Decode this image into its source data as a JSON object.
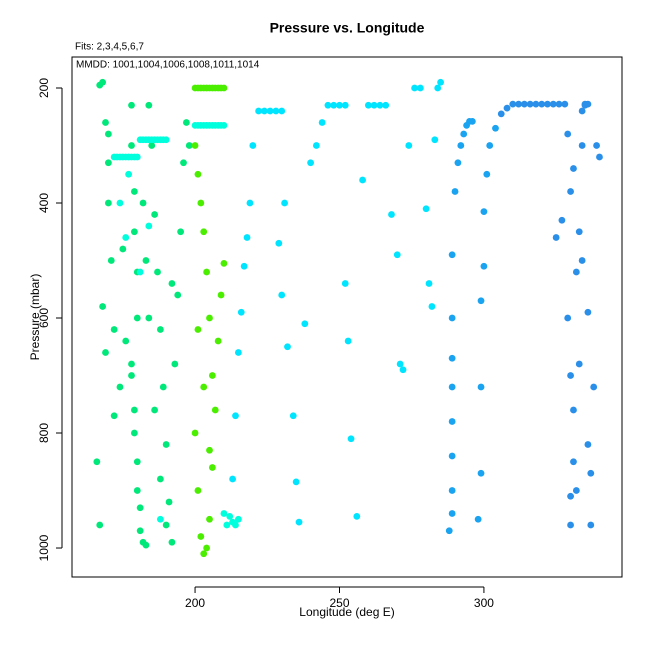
{
  "chart_data": {
    "type": "scatter",
    "title": "Pressure vs. Longitude",
    "subtitle": "Fits: 2,3,4,5,6,7",
    "annotation": "MMDD: 1001,1004,1006,1008,1011,1014",
    "x_label": "Longitude (deg E)",
    "y_label": "Pressure (mbar)",
    "xlim": [
      157.4,
      347.8
    ],
    "xticks": [
      200,
      250,
      300
    ],
    "ylim": [
      1050.4,
      146.1
    ],
    "yticks": [
      200,
      400,
      600,
      800,
      1000
    ],
    "grid": false,
    "series": [
      {
        "color": "#00e87a",
        "x": [
          167,
          168,
          169,
          170,
          170,
          171,
          168,
          169,
          172,
          166,
          167,
          178,
          178,
          179,
          179,
          180,
          180,
          178,
          179,
          180,
          181,
          182,
          183,
          184,
          185,
          182,
          183,
          184,
          178,
          179,
          180,
          181,
          170,
          172,
          174,
          176,
          175,
          186,
          187,
          188,
          189,
          190,
          191,
          192,
          193,
          194,
          195,
          196,
          197,
          198,
          186,
          188,
          190,
          192
        ],
        "values": [
          195,
          190,
          260,
          330,
          400,
          500,
          580,
          660,
          770,
          850,
          960,
          230,
          300,
          380,
          450,
          520,
          600,
          680,
          760,
          850,
          930,
          990,
          995,
          230,
          300,
          400,
          500,
          600,
          700,
          800,
          900,
          970,
          280,
          620,
          720,
          640,
          480,
          420,
          520,
          620,
          720,
          820,
          920,
          990,
          680,
          560,
          450,
          330,
          260,
          300,
          760,
          880,
          960,
          540
        ]
      },
      {
        "color": "#4cee00",
        "x": [
          200,
          201,
          202,
          203,
          204,
          205,
          206,
          207,
          208,
          209,
          210,
          200,
          201,
          202,
          203,
          204,
          205,
          206,
          200,
          201,
          202,
          203,
          204,
          205,
          206,
          207,
          208,
          209,
          210,
          201,
          203,
          205
        ],
        "values": [
          200,
          200,
          200,
          200,
          200,
          200,
          200,
          200,
          200,
          200,
          200,
          300,
          350,
          400,
          450,
          520,
          600,
          700,
          800,
          900,
          980,
          1010,
          1000,
          950,
          860,
          760,
          640,
          560,
          505,
          620,
          720,
          830
        ]
      },
      {
        "color": "#00ffdd",
        "x": [
          172,
          173,
          174,
          175,
          176,
          177,
          178,
          179,
          180,
          181,
          182,
          183,
          184,
          185,
          186,
          187,
          188,
          189,
          190,
          200,
          201,
          202,
          203,
          204,
          205,
          206,
          207,
          208,
          209,
          210,
          174,
          176,
          177,
          181,
          184,
          188,
          212,
          213,
          214,
          215,
          210,
          211
        ],
        "values": [
          320,
          320,
          320,
          320,
          320,
          320,
          320,
          320,
          320,
          290,
          290,
          290,
          290,
          290,
          290,
          290,
          290,
          290,
          290,
          265,
          265,
          265,
          265,
          265,
          265,
          265,
          265,
          265,
          265,
          265,
          400,
          460,
          350,
          520,
          440,
          950,
          945,
          955,
          960,
          950,
          940,
          960
        ]
      },
      {
        "color": "#00e5ff",
        "x": [
          213,
          214,
          215,
          216,
          217,
          218,
          219,
          220,
          222,
          224,
          226,
          228,
          230,
          231,
          229,
          230,
          232,
          234,
          235,
          236,
          238,
          240,
          242,
          244,
          246,
          248,
          250,
          252,
          252,
          253,
          254,
          256,
          258,
          260,
          262,
          264,
          266,
          268,
          270,
          271,
          272,
          274,
          276,
          278,
          280,
          281,
          282,
          283,
          284,
          285
        ],
        "values": [
          880,
          770,
          660,
          590,
          510,
          460,
          400,
          300,
          240,
          240,
          240,
          240,
          240,
          400,
          470,
          560,
          650,
          770,
          885,
          955,
          610,
          330,
          300,
          260,
          230,
          230,
          230,
          230,
          540,
          640,
          810,
          945,
          360,
          230,
          230,
          230,
          230,
          420,
          490,
          680,
          690,
          300,
          200,
          200,
          410,
          540,
          580,
          290,
          200,
          190
        ]
      },
      {
        "color": "#1aa3f0",
        "x": [
          288,
          289,
          289,
          289,
          289,
          289,
          289,
          289,
          289,
          290,
          291,
          292,
          293,
          294,
          295,
          296,
          298,
          299,
          299,
          299,
          300,
          300,
          301,
          302,
          304
        ],
        "values": [
          970,
          940,
          900,
          840,
          780,
          720,
          670,
          600,
          490,
          380,
          330,
          300,
          280,
          265,
          258,
          258,
          950,
          870,
          720,
          570,
          510,
          415,
          350,
          300,
          270
        ]
      },
      {
        "color": "#2a8fe8",
        "x": [
          306,
          308,
          310,
          312,
          314,
          316,
          318,
          320,
          322,
          324,
          326,
          328,
          325,
          327,
          329,
          330,
          331,
          332,
          333,
          334,
          335,
          336,
          330,
          330,
          331,
          332,
          333,
          334,
          336,
          337,
          338,
          339,
          340,
          336,
          337,
          335,
          329,
          330,
          331,
          334
        ],
        "values": [
          245,
          235,
          228,
          228,
          228,
          228,
          228,
          228,
          228,
          228,
          228,
          228,
          460,
          430,
          600,
          700,
          850,
          900,
          680,
          500,
          228,
          228,
          960,
          910,
          760,
          520,
          450,
          300,
          590,
          870,
          720,
          300,
          320,
          820,
          960,
          230,
          280,
          380,
          340,
          240
        ]
      }
    ]
  }
}
